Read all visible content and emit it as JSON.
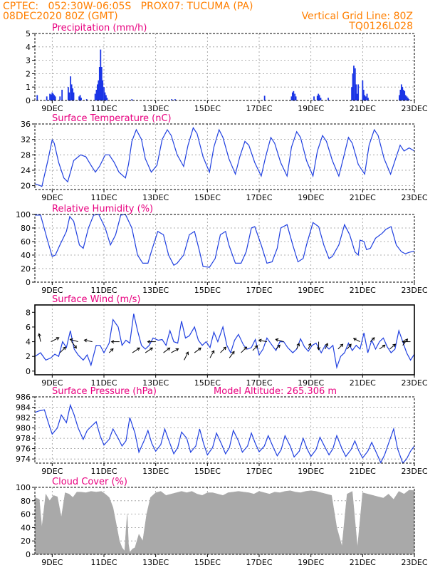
{
  "header": {
    "line1": "CPTEC:   052:30W-06:05S   PROX07: TUCUMA (PA)",
    "line2_left": "08DEC2020 80Z (GMT)",
    "line2_right": "Vertical Grid Line: 80Z",
    "line3_right": "TQ0126L028"
  },
  "colors": {
    "header": "#ff7f00",
    "title": "#e8007f",
    "line": "#2040e0",
    "bar": "#1a35e6",
    "cloud": "#a9a9a9",
    "arrow": "#000000",
    "grid": "#999999"
  },
  "x_axis": {
    "unit": "days since 08DEC2020 00Z",
    "range": [
      0.33,
      15.0
    ],
    "tick_positions": [
      1,
      3,
      5,
      7,
      9,
      11,
      13,
      15
    ],
    "tick_labels": [
      "9DEC",
      "11DEC",
      "13DEC",
      "15DEC",
      "17DEC",
      "19DEC",
      "21DEC",
      "23DEC"
    ]
  },
  "chart_data": [
    {
      "id": "precip",
      "type": "bar",
      "title": "Precipitation (mm/h)",
      "ylim": [
        0,
        5
      ],
      "yticks": [
        0,
        1,
        2,
        3,
        4,
        5
      ],
      "grid": true,
      "x": [
        0.42,
        0.79,
        0.91,
        0.96,
        1.0,
        1.04,
        1.08,
        1.12,
        1.3,
        1.38,
        1.62,
        1.66,
        1.71,
        1.75,
        1.79,
        1.83,
        2.04,
        2.08,
        2.12,
        2.33,
        2.66,
        2.71,
        2.75,
        2.79,
        2.83,
        2.87,
        2.91,
        2.95,
        3.0,
        3.04,
        3.08,
        3.12,
        4.08,
        5.62,
        5.75,
        9.21,
        10.25,
        10.29,
        10.33,
        10.38,
        10.42,
        11.12,
        11.25,
        11.29,
        11.33,
        11.38,
        11.67,
        12.58,
        12.62,
        12.66,
        12.71,
        12.75,
        12.79,
        12.83,
        13.0,
        13.04,
        13.08,
        13.12,
        13.17,
        13.21,
        14.42,
        14.46,
        14.5,
        14.54,
        14.58,
        14.62,
        14.66,
        14.71,
        14.75,
        14.79
      ],
      "values": [
        0.4,
        0.3,
        0.5,
        0.45,
        0.6,
        0.5,
        0.4,
        0.3,
        0.3,
        0.8,
        1.0,
        0.6,
        1.8,
        1.2,
        0.9,
        0.6,
        0.3,
        0.4,
        0.2,
        0.1,
        0.5,
        0.8,
        1.2,
        1.5,
        2.5,
        3.8,
        2.5,
        1.5,
        1.0,
        0.6,
        0.4,
        0.2,
        0.1,
        0.1,
        0.1,
        0.35,
        0.3,
        0.6,
        0.7,
        0.5,
        0.3,
        0.3,
        0.35,
        0.5,
        0.4,
        0.2,
        0.2,
        1.0,
        2.0,
        2.6,
        2.4,
        1.2,
        0.5,
        1.2,
        1.5,
        0.8,
        0.4,
        0.3,
        0.5,
        0.2,
        0.4,
        0.8,
        1.2,
        1.0,
        0.8,
        0.7,
        0.4,
        0.3,
        0.2,
        0.1
      ]
    },
    {
      "id": "temp",
      "type": "line",
      "title": "Surface Temperature (nC)",
      "ylim": [
        19,
        36
      ],
      "yticks": [
        20,
        24,
        28,
        32,
        36
      ],
      "grid": true,
      "x": [
        0.33,
        0.5,
        0.6,
        0.83,
        1.0,
        1.08,
        1.25,
        1.45,
        1.6,
        1.83,
        2.1,
        2.3,
        2.5,
        2.67,
        2.83,
        3.05,
        3.2,
        3.4,
        3.58,
        3.83,
        3.95,
        4.08,
        4.25,
        4.45,
        4.6,
        4.83,
        5.05,
        5.25,
        5.45,
        5.6,
        5.83,
        6.08,
        6.25,
        6.45,
        6.6,
        6.83,
        7.08,
        7.25,
        7.45,
        7.6,
        7.83,
        8.08,
        8.25,
        8.45,
        8.6,
        8.83,
        9.08,
        9.25,
        9.45,
        9.6,
        9.83,
        10.08,
        10.25,
        10.45,
        10.6,
        10.83,
        11.08,
        11.25,
        11.45,
        11.6,
        11.83,
        12.08,
        12.25,
        12.45,
        12.6,
        12.83,
        13.08,
        13.25,
        13.45,
        13.6,
        13.83,
        14.08,
        14.25,
        14.45,
        14.6,
        14.8,
        15.0
      ],
      "y": [
        20.5,
        20.1,
        19.8,
        26.5,
        31.9,
        31.0,
        26.0,
        22.0,
        21.0,
        26.5,
        28.0,
        27.5,
        25.3,
        23.5,
        25.0,
        28.0,
        28.0,
        26.0,
        23.5,
        22.0,
        25.5,
        31.5,
        34.5,
        32.0,
        27.0,
        23.5,
        25.3,
        32.0,
        34.5,
        33.0,
        28.0,
        25.0,
        30.5,
        35.0,
        33.5,
        27.5,
        23.5,
        30.0,
        34.5,
        32.5,
        27.0,
        23.0,
        27.5,
        31.5,
        30.5,
        26.0,
        22.5,
        27.5,
        32.5,
        31.0,
        26.0,
        22.5,
        30.0,
        34.0,
        32.5,
        26.5,
        22.5,
        29.0,
        33.0,
        31.5,
        26.5,
        22.5,
        27.0,
        32.5,
        31.0,
        25.5,
        23.0,
        30.5,
        34.5,
        33.0,
        27.0,
        23.0,
        26.5,
        30.5,
        29.0,
        29.8,
        29.0
      ]
    },
    {
      "id": "rh",
      "type": "line",
      "title": "Relative Humidity (%)",
      "ylim": [
        0,
        100
      ],
      "yticks": [
        0,
        20,
        40,
        60,
        80,
        100
      ],
      "grid": true,
      "x": [
        0.33,
        0.55,
        0.83,
        1.0,
        1.12,
        1.3,
        1.55,
        1.68,
        1.83,
        2.05,
        2.2,
        2.4,
        2.6,
        2.8,
        3.05,
        3.25,
        3.45,
        3.65,
        3.83,
        4.08,
        4.3,
        4.5,
        4.7,
        4.83,
        5.08,
        5.3,
        5.5,
        5.7,
        5.83,
        6.08,
        6.3,
        6.5,
        6.7,
        6.83,
        7.08,
        7.3,
        7.5,
        7.7,
        7.83,
        8.08,
        8.3,
        8.5,
        8.7,
        8.83,
        9.08,
        9.3,
        9.5,
        9.7,
        9.83,
        10.08,
        10.3,
        10.5,
        10.7,
        10.83,
        11.08,
        11.3,
        11.5,
        11.7,
        11.83,
        12.08,
        12.3,
        12.5,
        12.7,
        12.83,
        12.9,
        13.05,
        13.15,
        13.3,
        13.5,
        13.75,
        13.9,
        14.1,
        14.3,
        14.5,
        14.65,
        14.8,
        15.0
      ],
      "y": [
        99,
        99,
        60,
        38,
        40,
        55,
        75,
        97,
        90,
        55,
        50,
        80,
        99,
        100,
        80,
        55,
        70,
        99,
        100,
        80,
        40,
        28,
        28,
        45,
        75,
        70,
        40,
        25,
        28,
        40,
        70,
        75,
        45,
        23,
        22,
        35,
        70,
        75,
        55,
        28,
        28,
        45,
        80,
        82,
        55,
        28,
        30,
        50,
        80,
        85,
        55,
        30,
        35,
        55,
        88,
        82,
        55,
        35,
        38,
        55,
        85,
        70,
        45,
        40,
        62,
        60,
        48,
        50,
        65,
        72,
        78,
        82,
        55,
        45,
        42,
        44,
        46
      ]
    },
    {
      "id": "wind",
      "type": "line",
      "title": "Surface Wind (m/s)",
      "ylim": [
        -0.5,
        9
      ],
      "yticks": [
        0,
        2,
        4,
        6,
        8
      ],
      "grid": false,
      "x": [
        0.33,
        0.55,
        0.75,
        0.95,
        1.1,
        1.25,
        1.4,
        1.55,
        1.7,
        1.85,
        2.0,
        2.2,
        2.35,
        2.5,
        2.7,
        2.85,
        3.0,
        3.2,
        3.35,
        3.55,
        3.7,
        3.85,
        4.0,
        4.15,
        4.3,
        4.45,
        4.6,
        4.75,
        4.9,
        5.1,
        5.25,
        5.4,
        5.55,
        5.7,
        5.85,
        6.0,
        6.15,
        6.3,
        6.5,
        6.65,
        6.8,
        6.95,
        7.1,
        7.25,
        7.4,
        7.6,
        7.75,
        7.9,
        8.05,
        8.2,
        8.4,
        8.55,
        8.7,
        8.85,
        9.0,
        9.15,
        9.3,
        9.5,
        9.65,
        9.8,
        9.95,
        10.1,
        10.3,
        10.45,
        10.6,
        10.75,
        10.9,
        11.05,
        11.2,
        11.4,
        11.55,
        11.7,
        11.85,
        12.0,
        12.15,
        12.3,
        12.45,
        12.6,
        12.75,
        12.9,
        13.05,
        13.2,
        13.35,
        13.5,
        13.65,
        13.8,
        13.95,
        14.1,
        14.25,
        14.4,
        14.55,
        14.7,
        14.85,
        15.0
      ],
      "y": [
        2.0,
        2.5,
        1.5,
        1.8,
        2.3,
        2.0,
        4.0,
        3.2,
        5.5,
        3.0,
        2.2,
        1.5,
        2.2,
        0.8,
        3.5,
        3.5,
        2.5,
        3.8,
        7.0,
        6.0,
        3.5,
        4.2,
        3.8,
        7.8,
        5.5,
        3.5,
        3.0,
        3.5,
        4.5,
        4.2,
        4.3,
        3.5,
        5.5,
        4.0,
        3.8,
        6.8,
        4.5,
        4.8,
        6.0,
        4.2,
        3.5,
        4.0,
        3.2,
        5.3,
        4.0,
        6.0,
        3.5,
        2.5,
        4.2,
        5.0,
        3.5,
        3.0,
        3.2,
        4.3,
        2.2,
        3.0,
        4.5,
        3.5,
        2.8,
        4.0,
        4.0,
        3.2,
        2.5,
        3.0,
        4.4,
        3.3,
        2.7,
        3.5,
        3.8,
        2.5,
        3.5,
        3.0,
        3.5,
        0.5,
        2.0,
        2.5,
        3.8,
        2.8,
        3.5,
        3.0,
        5.2,
        2.5,
        4.2,
        3.0,
        4.0,
        4.5,
        3.3,
        2.5,
        3.0,
        5.5,
        4.0,
        2.5,
        1.5,
        2.3
      ],
      "vectors": [
        {
          "x": 0.55,
          "y": 4.0,
          "u": -0.2,
          "v": 1.0
        },
        {
          "x": 0.95,
          "y": 4.0,
          "u": 1.0,
          "v": 0.5
        },
        {
          "x": 1.3,
          "y": 2.5,
          "u": 0.7,
          "v": 0.7
        },
        {
          "x": 1.75,
          "y": 4.0,
          "u": 0.6,
          "v": -0.8
        },
        {
          "x": 2.0,
          "y": 4.0,
          "u": -1.0,
          "v": 0.3
        },
        {
          "x": 2.55,
          "y": 4.0,
          "u": -1.0,
          "v": 0.2
        },
        {
          "x": 3.2,
          "y": 2.5,
          "u": 0.5,
          "v": 0.5
        },
        {
          "x": 3.6,
          "y": 4.0,
          "u": -1.0,
          "v": 0.0
        },
        {
          "x": 4.1,
          "y": 2.5,
          "u": 0.9,
          "v": 0.6
        },
        {
          "x": 4.6,
          "y": 2.5,
          "u": 0.9,
          "v": 0.6
        },
        {
          "x": 5.0,
          "y": 4.0,
          "u": -1.0,
          "v": 0.0
        },
        {
          "x": 5.3,
          "y": 2.5,
          "u": 0.8,
          "v": 0.6
        },
        {
          "x": 5.6,
          "y": 2.5,
          "u": 0.9,
          "v": 0.5
        },
        {
          "x": 6.1,
          "y": 1.5,
          "u": 0.5,
          "v": 1.0
        },
        {
          "x": 6.5,
          "y": 2.5,
          "u": 0.8,
          "v": 0.6
        },
        {
          "x": 7.1,
          "y": 1.8,
          "u": 0.5,
          "v": 0.9
        },
        {
          "x": 7.5,
          "y": 2.5,
          "u": 0.7,
          "v": 0.7
        },
        {
          "x": 7.85,
          "y": 1.8,
          "u": 0.6,
          "v": 0.8
        },
        {
          "x": 8.3,
          "y": 2.5,
          "u": 0.7,
          "v": 0.7
        },
        {
          "x": 8.75,
          "y": 2.8,
          "u": 0.6,
          "v": 0.6
        },
        {
          "x": 9.3,
          "y": 4.0,
          "u": -1.0,
          "v": 0.2
        },
        {
          "x": 9.65,
          "y": 3.0,
          "u": 0.5,
          "v": 0.5
        },
        {
          "x": 9.95,
          "y": 4.0,
          "u": -1.0,
          "v": 0.3
        },
        {
          "x": 10.45,
          "y": 3.0,
          "u": 0.3,
          "v": 0.7
        },
        {
          "x": 10.9,
          "y": 3.0,
          "u": 0.3,
          "v": 0.7
        },
        {
          "x": 11.3,
          "y": 4.0,
          "u": 0.0,
          "v": -1.0
        },
        {
          "x": 11.55,
          "y": 3.0,
          "u": 0.3,
          "v": 0.7
        },
        {
          "x": 12.05,
          "y": 3.0,
          "u": 0.6,
          "v": 0.6
        },
        {
          "x": 12.4,
          "y": 3.0,
          "u": 0.5,
          "v": 0.6
        },
        {
          "x": 12.9,
          "y": 4.0,
          "u": -0.8,
          "v": 0.4
        },
        {
          "x": 13.3,
          "y": 4.0,
          "u": 0.5,
          "v": 0.5
        },
        {
          "x": 13.65,
          "y": 3.0,
          "u": 0.7,
          "v": 0.5
        },
        {
          "x": 14.05,
          "y": 3.0,
          "u": 0.7,
          "v": 0.6
        },
        {
          "x": 14.55,
          "y": 3.5,
          "u": 0.6,
          "v": 0.8
        },
        {
          "x": 14.85,
          "y": 4.0,
          "u": -1.0,
          "v": 0.0
        }
      ]
    },
    {
      "id": "pres",
      "type": "line",
      "title": "Surface Pressure (hPa)",
      "subtitle": "Model Altitude: 265.306 m",
      "ylim": [
        973.2,
        986
      ],
      "yticks": [
        974,
        976,
        978,
        980,
        982,
        984,
        986
      ],
      "grid": true,
      "x": [
        0.33,
        0.5,
        0.7,
        0.85,
        1.0,
        1.2,
        1.35,
        1.55,
        1.7,
        1.85,
        2.0,
        2.2,
        2.35,
        2.55,
        2.7,
        2.85,
        3.0,
        3.2,
        3.35,
        3.55,
        3.7,
        3.85,
        4.0,
        4.2,
        4.35,
        4.55,
        4.7,
        4.85,
        5.0,
        5.2,
        5.35,
        5.55,
        5.7,
        5.85,
        6.0,
        6.2,
        6.35,
        6.55,
        6.7,
        6.85,
        7.0,
        7.2,
        7.35,
        7.55,
        7.7,
        7.85,
        8.0,
        8.2,
        8.35,
        8.55,
        8.7,
        8.85,
        9.0,
        9.2,
        9.35,
        9.55,
        9.7,
        9.85,
        10.0,
        10.2,
        10.35,
        10.55,
        10.7,
        10.85,
        11.0,
        11.2,
        11.35,
        11.55,
        11.7,
        11.85,
        12.0,
        12.2,
        12.35,
        12.55,
        12.7,
        12.85,
        13.0,
        13.2,
        13.35,
        13.55,
        13.7,
        13.85,
        14.0,
        14.2,
        14.35,
        14.55,
        14.7,
        14.85,
        15.0
      ],
      "y": [
        983.0,
        983.3,
        983.5,
        981.0,
        978.8,
        980.0,
        982.5,
        981.0,
        984.4,
        982.5,
        980.0,
        977.8,
        979.5,
        980.5,
        981.2,
        978.5,
        976.7,
        977.8,
        979.8,
        978.0,
        976.5,
        977.5,
        982.0,
        979.0,
        975.3,
        977.5,
        979.5,
        977.0,
        975.5,
        976.8,
        979.8,
        977.0,
        975.0,
        976.2,
        979.2,
        978.0,
        975.3,
        976.5,
        979.8,
        977.0,
        974.8,
        976.2,
        979.0,
        976.8,
        975.0,
        976.2,
        979.5,
        977.5,
        975.3,
        976.5,
        979.0,
        977.0,
        975.4,
        976.5,
        978.5,
        976.2,
        974.6,
        975.8,
        978.5,
        976.5,
        974.4,
        975.5,
        978.0,
        976.0,
        974.5,
        975.8,
        978.2,
        976.2,
        974.8,
        976.0,
        978.5,
        976.0,
        974.5,
        975.8,
        977.5,
        975.6,
        974.2,
        975.5,
        977.2,
        975.0,
        973.3,
        974.8,
        977.0,
        979.8,
        976.0,
        973.2,
        974.0,
        975.5,
        976.5
      ]
    },
    {
      "id": "cloud",
      "type": "area",
      "title": "Cloud Cover (%)",
      "ylim": [
        0,
        100
      ],
      "yticks": [
        0,
        20,
        40,
        60,
        80,
        100
      ],
      "grid": true,
      "x": [
        0.33,
        0.5,
        0.6,
        0.75,
        0.9,
        1.05,
        1.2,
        1.35,
        1.5,
        1.65,
        1.8,
        1.95,
        2.1,
        2.3,
        2.5,
        2.7,
        2.9,
        3.05,
        3.2,
        3.35,
        3.5,
        3.6,
        3.7,
        3.8,
        3.85,
        3.9,
        3.95,
        4.0,
        4.1,
        4.2,
        4.35,
        4.5,
        4.65,
        4.8,
        5.0,
        5.2,
        5.4,
        5.6,
        5.8,
        6.0,
        6.2,
        6.4,
        6.6,
        6.8,
        7.0,
        7.2,
        7.4,
        7.6,
        7.8,
        8.0,
        8.2,
        8.4,
        8.6,
        8.8,
        9.0,
        9.2,
        9.4,
        9.6,
        9.8,
        10.0,
        10.2,
        10.4,
        10.6,
        10.8,
        11.0,
        11.2,
        11.4,
        11.6,
        11.8,
        12.0,
        12.2,
        12.4,
        12.6,
        12.8,
        13.0,
        13.2,
        13.4,
        13.6,
        13.8,
        14.0,
        14.2,
        14.4,
        14.6,
        14.8,
        15.0
      ],
      "y": [
        85,
        82,
        40,
        90,
        80,
        88,
        86,
        55,
        92,
        90,
        85,
        93,
        93,
        92,
        94,
        93,
        94,
        90,
        85,
        70,
        40,
        20,
        10,
        5,
        35,
        60,
        15,
        3,
        8,
        10,
        30,
        20,
        60,
        85,
        92,
        94,
        88,
        90,
        92,
        94,
        92,
        94,
        90,
        88,
        92,
        92,
        90,
        88,
        92,
        93,
        94,
        93,
        92,
        90,
        94,
        92,
        90,
        93,
        92,
        94,
        95,
        93,
        92,
        94,
        95,
        94,
        92,
        90,
        88,
        40,
        12,
        90,
        94,
        10,
        92,
        90,
        88,
        86,
        84,
        90,
        82,
        94,
        90,
        96,
        95
      ]
    }
  ]
}
